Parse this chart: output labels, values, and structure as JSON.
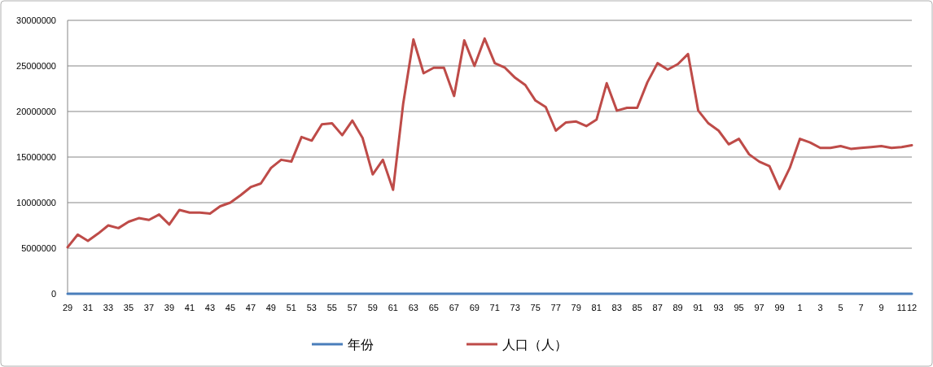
{
  "chart_data": {
    "type": "line",
    "categories": [
      "29",
      null,
      "31",
      null,
      "33",
      null,
      "35",
      null,
      "37",
      null,
      "39",
      null,
      "41",
      null,
      "43",
      null,
      "45",
      null,
      "47",
      null,
      "49",
      null,
      "51",
      null,
      "53",
      null,
      "55",
      null,
      "57",
      null,
      "59",
      null,
      "61",
      null,
      "63",
      null,
      "65",
      null,
      "67",
      null,
      "69",
      null,
      "71",
      null,
      "73",
      null,
      "75",
      null,
      "77",
      null,
      "79",
      null,
      "81",
      null,
      "83",
      null,
      "85",
      null,
      "87",
      null,
      "89",
      null,
      "91",
      null,
      "93",
      null,
      "95",
      null,
      "97",
      null,
      "99",
      null,
      "1",
      null,
      "3",
      null,
      "5",
      null,
      "7",
      null,
      "9",
      null,
      "11",
      "12"
    ],
    "series": [
      {
        "name": "年份",
        "color": "#4a7ebb",
        "values": [
          0,
          0,
          0,
          0,
          0,
          0,
          0,
          0,
          0,
          0,
          0,
          0,
          0,
          0,
          0,
          0,
          0,
          0,
          0,
          0,
          0,
          0,
          0,
          0,
          0,
          0,
          0,
          0,
          0,
          0,
          0,
          0,
          0,
          0,
          0,
          0,
          0,
          0,
          0,
          0,
          0,
          0,
          0,
          0,
          0,
          0,
          0,
          0,
          0,
          0,
          0,
          0,
          0,
          0,
          0,
          0,
          0,
          0,
          0,
          0,
          0,
          0,
          0,
          0,
          0,
          0,
          0,
          0,
          0,
          0,
          0,
          0,
          0,
          0,
          0,
          0,
          0,
          0,
          0,
          0,
          0,
          0,
          0,
          0
        ]
      },
      {
        "name": "人口（人）",
        "color": "#be4b48",
        "values": [
          5100000,
          6500000,
          5800000,
          6600000,
          7500000,
          7200000,
          7900000,
          8300000,
          8100000,
          8700000,
          7600000,
          9200000,
          8900000,
          8900000,
          8800000,
          9600000,
          10000000,
          10800000,
          11700000,
          12100000,
          13800000,
          14700000,
          14500000,
          17200000,
          16800000,
          18600000,
          18700000,
          17400000,
          19000000,
          17100000,
          13100000,
          14700000,
          11400000,
          20900000,
          27900000,
          24200000,
          24800000,
          24800000,
          21700000,
          27800000,
          25000000,
          28000000,
          25300000,
          24800000,
          23700000,
          22900000,
          21200000,
          20500000,
          17900000,
          18800000,
          18900000,
          18400000,
          19100000,
          23100000,
          20100000,
          20400000,
          20400000,
          23200000,
          25300000,
          24600000,
          25200000,
          26300000,
          20100000,
          18700000,
          17900000,
          16400000,
          17000000,
          15300000,
          14500000,
          14000000,
          11500000,
          13800000,
          17000000,
          16600000,
          16000000,
          16000000,
          16200000,
          15900000,
          16000000,
          16100000,
          16200000,
          16000000,
          16100000,
          16300000
        ]
      }
    ],
    "ylim": [
      0,
      30000000
    ],
    "yticks": [
      0,
      5000000,
      10000000,
      15000000,
      20000000,
      25000000,
      30000000
    ],
    "grid": "y",
    "legend": "bottom",
    "marker": "none",
    "line_style": "solid"
  }
}
